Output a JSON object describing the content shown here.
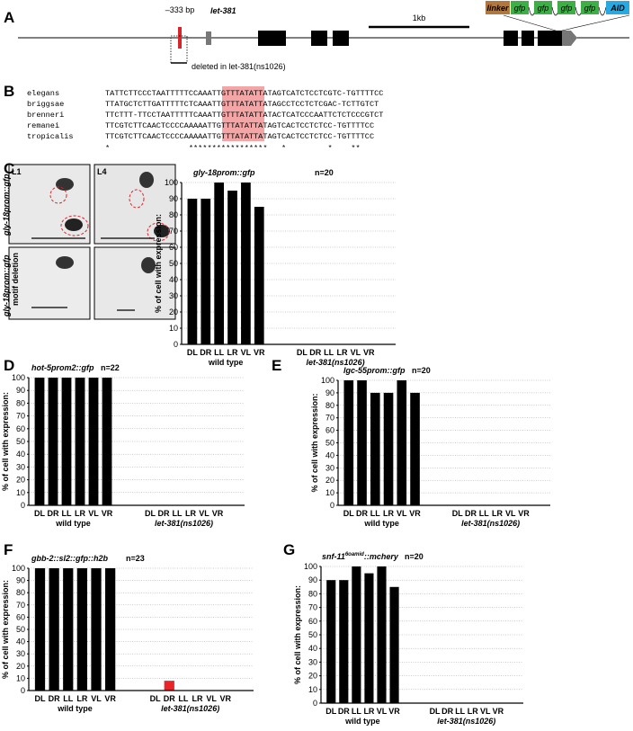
{
  "panel_a": {
    "label": "A",
    "deletion_size": "–333 bp",
    "gene": "let-381",
    "scale": "1kb",
    "deletion_note": "deleted in let-381(ns1026)",
    "construct": [
      "linker",
      "gfp",
      "gfp",
      "gfp",
      "gfp",
      "AID"
    ]
  },
  "panel_b": {
    "label": "B",
    "species": [
      "elegans",
      "briggsae",
      "brenneri",
      "remanei",
      "tropicalis"
    ],
    "sequences": [
      "TATTCTTCCCTAATTTTTCCAAATTGTTTATATTATAGTCATCTCCTCGTC-TGTTTTCC",
      "TTATGCTCTTGATTTTTCTCAAATTGTTTATATTATAGCCTCCTCTCGAC-TCTTGTCT",
      "TTCTTT-TTCCTAATTTTTCAAATTGTTTATATTATACTCATCCCAATTCTCTCCCGTCT",
      "TTCGTCTTCAACTCCCCAAAAATTGTTTATATTATAGTCACTCCTCTCC-TGTTTTCC",
      "TTCGTCTTCAACTCCCCAAAAATTGTTTATATTATAGTCACTCCTCTCC-TGTTTTCC"
    ],
    "conservation": "*                 *****************   *         *    **"
  },
  "panel_c_images": {
    "stages": [
      "L1",
      "L4"
    ],
    "row_labels": [
      "gly-18prom::gfp",
      "gly-18prom::gfp",
      "motif deletion"
    ]
  },
  "chart_data": [
    {
      "type": "bar",
      "panel_label": "C",
      "title": "gly-18prom::gfp",
      "n": "n=20",
      "y_label": "% of cell with expression:",
      "categories": [
        "DL",
        "DR",
        "LL",
        "LR",
        "VL",
        "VR",
        "DL",
        "DR",
        "LL",
        "LR",
        "VL",
        "VR"
      ],
      "values": [
        90,
        90,
        100,
        95,
        100,
        85,
        0,
        0,
        0,
        0,
        0,
        0
      ],
      "color": "#000000",
      "group_labels": [
        "wild type",
        "let-381(ns1026)"
      ],
      "group_colors": [
        "#000000",
        "#d7262b"
      ],
      "ylim": [
        0,
        100
      ],
      "yticks": [
        0,
        10,
        20,
        30,
        40,
        50,
        60,
        70,
        80,
        90,
        100
      ],
      "grid": true
    },
    {
      "type": "bar",
      "panel_label": "D",
      "title": "hot-5prom2::gfp",
      "n": "n=22",
      "y_label": "% of cell with expression:",
      "categories": [
        "DL",
        "DR",
        "LL",
        "LR",
        "VL",
        "VR",
        "DL",
        "DR",
        "LL",
        "LR",
        "VL",
        "VR"
      ],
      "values": [
        100,
        100,
        100,
        100,
        100,
        100,
        0,
        0,
        0,
        0,
        0,
        0
      ],
      "color": "#000000",
      "group_labels": [
        "wild type",
        "let-381(ns1026)"
      ],
      "group_colors": [
        "#000000",
        "#d7262b"
      ],
      "ylim": [
        0,
        100
      ],
      "yticks": [
        0,
        10,
        20,
        30,
        40,
        50,
        60,
        70,
        80,
        90,
        100
      ],
      "grid": true
    },
    {
      "type": "bar",
      "panel_label": "E",
      "title": "lgc-55prom::gfp",
      "n": "n=20",
      "y_label": "% of cell with expression:",
      "categories": [
        "DL",
        "DR",
        "LL",
        "LR",
        "VL",
        "VR",
        "DL",
        "DR",
        "LL",
        "LR",
        "VL",
        "VR"
      ],
      "values": [
        100,
        100,
        90,
        90,
        100,
        90,
        0,
        0,
        0,
        0,
        0,
        0
      ],
      "color": "#000000",
      "group_labels": [
        "wild type",
        "let-381(ns1026)"
      ],
      "group_colors": [
        "#000000",
        "#d7262b"
      ],
      "ylim": [
        0,
        100
      ],
      "yticks": [
        0,
        10,
        20,
        30,
        40,
        50,
        60,
        70,
        80,
        90,
        100
      ],
      "grid": true
    },
    {
      "type": "bar",
      "panel_label": "F",
      "title": "gbb-2::sl2::gfp::h2b",
      "n": "n=23",
      "y_label": "% of cell with expression:",
      "categories": [
        "DL",
        "DR",
        "LL",
        "LR",
        "VL",
        "VR",
        "DL",
        "DR",
        "LL",
        "LR",
        "VL",
        "VR"
      ],
      "values": [
        100,
        100,
        100,
        100,
        100,
        100,
        0,
        8,
        0,
        0,
        0,
        0
      ],
      "color": "#000000",
      "value_colors": [
        "#000000",
        "#000000",
        "#000000",
        "#000000",
        "#000000",
        "#000000",
        "#e8262a",
        "#e8262a",
        "#e8262a",
        "#e8262a",
        "#e8262a",
        "#e8262a"
      ],
      "group_labels": [
        "wild type",
        "let-381(ns1026)"
      ],
      "group_colors": [
        "#000000",
        "#d7262b"
      ],
      "ylim": [
        0,
        100
      ],
      "yticks": [
        0,
        10,
        20,
        30,
        40,
        50,
        60,
        70,
        80,
        90,
        100
      ],
      "grid": true
    },
    {
      "type": "bar",
      "panel_label": "G",
      "title": "snf-11",
      "title_sup": "6oamid",
      "title_suffix": "::mchery",
      "n": "n=20",
      "y_label": "% of cell with expression:",
      "categories": [
        "DL",
        "DR",
        "LL",
        "LR",
        "VL",
        "VR",
        "DL",
        "DR",
        "LL",
        "LR",
        "VL",
        "VR"
      ],
      "values": [
        90,
        90,
        100,
        95,
        100,
        85,
        0,
        0,
        0,
        0,
        0,
        0
      ],
      "color": "#000000",
      "group_labels": [
        "wild type",
        "let-381(ns1026)"
      ],
      "group_colors": [
        "#000000",
        "#d7262b"
      ],
      "ylim": [
        0,
        100
      ],
      "yticks": [
        0,
        10,
        20,
        30,
        40,
        50,
        60,
        70,
        80,
        90,
        100
      ],
      "grid": true
    }
  ]
}
